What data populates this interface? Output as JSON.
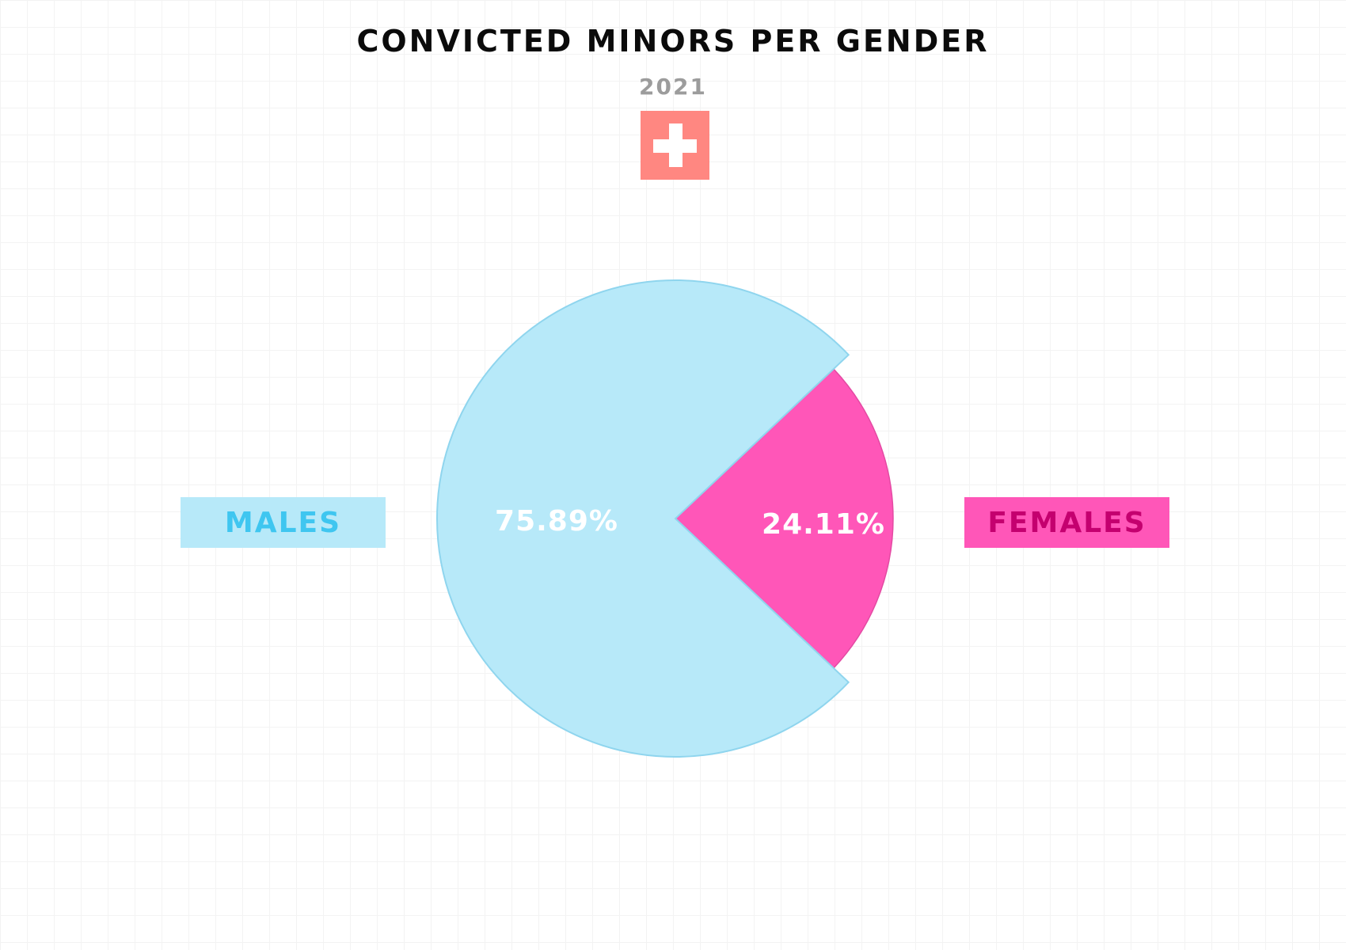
{
  "chart_data": {
    "type": "pie",
    "title": "CONVICTED MINORS PER GENDER",
    "subtitle": "2021",
    "slices": [
      {
        "name": "MALES",
        "value": 75.89,
        "label": "75.89%",
        "color": "#b7e9f9",
        "edge": "#8fd5ee",
        "legend_text_color": "#3fc6f0"
      },
      {
        "name": "FEMALES",
        "value": 24.11,
        "label": "24.11%",
        "color": "#ff56b8",
        "edge": "#e44aa3",
        "legend_text_color": "#c4006f"
      }
    ],
    "legend": [
      {
        "label": "MALES",
        "position": "left"
      },
      {
        "label": "FEMALES",
        "position": "right"
      }
    ]
  },
  "flag": {
    "icon": "swiss-flag-icon",
    "background": "#ff8781",
    "cross": "#ffffff"
  }
}
